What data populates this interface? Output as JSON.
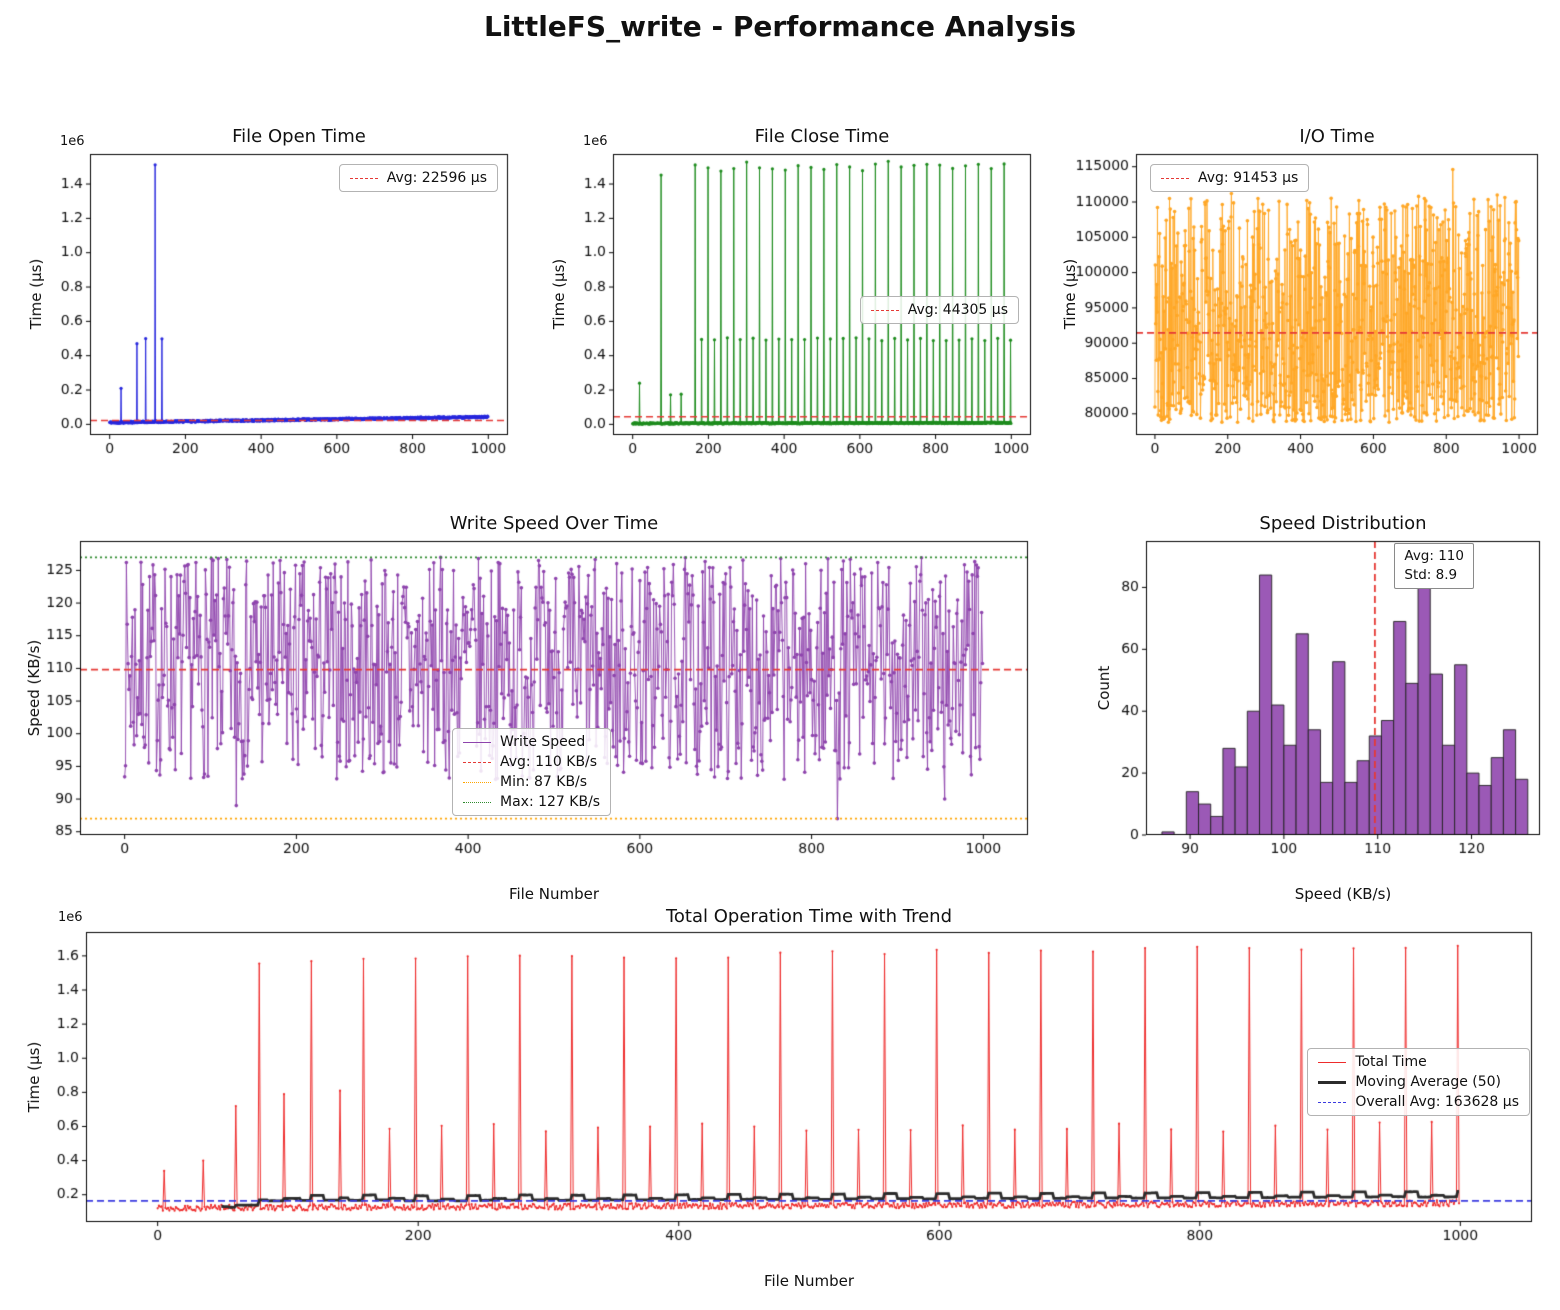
{
  "title": "LittleFS_write - Performance Analysis",
  "chart_data": [
    {
      "id": "file-open-time",
      "type": "line",
      "title": "File Open Time",
      "ylabel": "Time (µs)",
      "y_offset_label": "1e6",
      "xlim": [
        -52,
        1052
      ],
      "ylim": [
        -62000,
        1575000
      ],
      "xticks": [
        0,
        200,
        400,
        600,
        800,
        1000
      ],
      "xtick_labels": [
        "0",
        "200",
        "400",
        "600",
        "800",
        "1000"
      ],
      "yticks": [
        0,
        200000,
        400000,
        600000,
        800000,
        1000000,
        1200000,
        1400000
      ],
      "ytick_labels": [
        "0.0",
        "0.2",
        "0.4",
        "0.6",
        "0.8",
        "1.0",
        "1.2",
        "1.4"
      ],
      "color": "#2727dd",
      "lw": 1,
      "marker_r": 1.6,
      "series": {
        "kind": "baseline_spikes",
        "n": 1000,
        "base_start": 11000,
        "base_end": 43000,
        "noise": 5200,
        "seed": 42,
        "spikes": [
          [
            30,
            210000
          ],
          [
            72,
            470000
          ],
          [
            95,
            500000
          ],
          [
            120,
            1512000
          ],
          [
            138,
            498000
          ]
        ]
      },
      "hlines": [
        {
          "v": 22596,
          "color": "#e53935",
          "dash": "dashed",
          "lw": 1.7
        }
      ],
      "legend": [
        {
          "label": "Avg: 22596 µs",
          "color": "#e53935",
          "dash": "dashed",
          "lw": 1.7
        }
      ]
    },
    {
      "id": "file-close-time",
      "type": "line",
      "title": "File Close Time",
      "ylabel": "Time (µs)",
      "y_offset_label": "1e6",
      "xlim": [
        -52,
        1052
      ],
      "ylim": [
        -62000,
        1575000
      ],
      "xticks": [
        0,
        200,
        400,
        600,
        800,
        1000
      ],
      "xtick_labels": [
        "0",
        "200",
        "400",
        "600",
        "800",
        "1000"
      ],
      "yticks": [
        0,
        200000,
        400000,
        600000,
        800000,
        1000000,
        1200000,
        1400000
      ],
      "ytick_labels": [
        "0.0",
        "0.2",
        "0.4",
        "0.6",
        "0.8",
        "1.0",
        "1.2",
        "1.4"
      ],
      "color": "#1e8c1e",
      "lw": 1,
      "marker_r": 1.6,
      "series": {
        "kind": "baseline_spikes",
        "n": 1000,
        "base_start": 5500,
        "base_end": 9000,
        "noise": 4000,
        "seed": 77,
        "spikes": [
          [
            18,
            240000
          ],
          [
            75,
            1452000
          ],
          [
            100,
            172000
          ],
          [
            128,
            176000
          ]
        ],
        "patterns": [
          {
            "start": 165,
            "end": 998,
            "step": 17,
            "alternate": [
              1503000,
              497000
            ],
            "jitter": 0.02
          }
        ]
      },
      "hlines": [
        {
          "v": 44305,
          "color": "#e53935",
          "dash": "dashed",
          "lw": 1.7
        }
      ],
      "legend": [
        {
          "label": "Avg: 44305 µs",
          "color": "#e53935",
          "dash": "dashed",
          "lw": 1.7
        }
      ]
    },
    {
      "id": "io-time",
      "type": "line",
      "title": "I/O Time",
      "ylabel": "Time (µs)",
      "xlim": [
        -52,
        1052
      ],
      "ylim": [
        77000,
        116800
      ],
      "xticks": [
        0,
        200,
        400,
        600,
        800,
        1000
      ],
      "xtick_labels": [
        "0",
        "200",
        "400",
        "600",
        "800",
        "1000"
      ],
      "yticks": [
        80000,
        85000,
        90000,
        95000,
        100000,
        105000,
        110000,
        115000
      ],
      "ytick_labels": [
        "80000",
        "85000",
        "90000",
        "95000",
        "100000",
        "105000",
        "110000",
        "115000"
      ],
      "color": "#ffa726",
      "lw": 0.9,
      "marker_r": 1.8,
      "series": {
        "kind": "noisy",
        "n": 1000,
        "min": 78800,
        "max": 110800,
        "bias": 1.35,
        "seed": 101,
        "spikes": [
          [
            40,
            110500
          ],
          [
            210,
            111200
          ],
          [
            560,
            110200
          ],
          [
            818,
            114600
          ],
          [
            940,
            111000
          ]
        ]
      },
      "hlines": [
        {
          "v": 91453,
          "color": "#e53935",
          "dash": "dashed",
          "lw": 1.8
        }
      ],
      "legend": [
        {
          "label": "Avg: 91453 µs",
          "color": "#e53935",
          "dash": "dashed",
          "lw": 1.7
        }
      ]
    },
    {
      "id": "write-speed",
      "type": "line",
      "title": "Write Speed Over Time",
      "xlabel": "File Number",
      "ylabel": "Speed (KB/s)",
      "xlim": [
        -52,
        1052
      ],
      "ylim": [
        84.5,
        129.5
      ],
      "xticks": [
        0,
        200,
        400,
        600,
        800,
        1000
      ],
      "xtick_labels": [
        "0",
        "200",
        "400",
        "600",
        "800",
        "1000"
      ],
      "yticks": [
        85,
        90,
        95,
        100,
        105,
        110,
        115,
        120,
        125
      ],
      "ytick_labels": [
        "85",
        "90",
        "95",
        "100",
        "105",
        "110",
        "115",
        "120",
        "125"
      ],
      "color": "#8e44ad",
      "lw": 0.9,
      "marker_r": 1.8,
      "series": {
        "kind": "noisy",
        "n": 1000,
        "min": 93,
        "max": 127,
        "bias": 1.0,
        "seed": 7,
        "spikes": [
          [
            130,
            89
          ],
          [
            830,
            87
          ],
          [
            955,
            90
          ]
        ]
      },
      "hlines": [
        {
          "v": 109.8,
          "color": "#e53935",
          "dash": "dashed",
          "lw": 1.8
        },
        {
          "v": 87,
          "color": "#ffa500",
          "dash": "dotted",
          "lw": 1.8
        },
        {
          "v": 127,
          "color": "#2e8b2e",
          "dash": "dotted",
          "lw": 1.8
        }
      ],
      "legend": [
        {
          "label": "Write Speed",
          "color": "#8e44ad",
          "dash": "solid",
          "lw": 1.7
        },
        {
          "label": "Avg: 110 KB/s",
          "color": "#e53935",
          "dash": "dashed",
          "lw": 1.7
        },
        {
          "label": "Min: 87 KB/s",
          "color": "#ffa500",
          "dash": "dotted",
          "lw": 1.7
        },
        {
          "label": "Max: 127 KB/s",
          "color": "#2e8b2e",
          "dash": "dotted",
          "lw": 1.7
        }
      ]
    },
    {
      "id": "speed-distribution",
      "type": "histogram",
      "title": "Speed Distribution",
      "xlabel": "Speed (KB/s)",
      "ylabel": "Count",
      "xlim": [
        85.3,
        127.3
      ],
      "ylim": [
        0,
        95
      ],
      "xticks": [
        90,
        100,
        110,
        120
      ],
      "xtick_labels": [
        "90",
        "100",
        "110",
        "120"
      ],
      "yticks": [
        0,
        20,
        40,
        60,
        80
      ],
      "ytick_labels": [
        "0",
        "20",
        "40",
        "60",
        "80"
      ],
      "hist": {
        "start": 87,
        "width": 1.3,
        "fill": "#9b59b6",
        "edge": "#202020",
        "counts": [
          1,
          0,
          14,
          10,
          6,
          28,
          22,
          40,
          84,
          42,
          29,
          65,
          34,
          17,
          56,
          17,
          24,
          32,
          37,
          69,
          49,
          91,
          52,
          29,
          55,
          20,
          16,
          25,
          34,
          18
        ]
      },
      "vlines": [
        {
          "v": 109.7,
          "color": "#e53935",
          "dash": "dashed",
          "lw": 1.8
        }
      ],
      "annotation": [
        "Avg: 110",
        "Std: 8.9"
      ]
    },
    {
      "id": "total-operation-time",
      "type": "line",
      "title": "Total Operation Time with Trend",
      "xlabel": "File Number",
      "ylabel": "Time (µs)",
      "y_offset_label": "1e6",
      "xlim": [
        -55,
        1055
      ],
      "ylim": [
        40000,
        1740000
      ],
      "xticks": [
        0,
        200,
        400,
        600,
        800,
        1000
      ],
      "xtick_labels": [
        "0",
        "200",
        "400",
        "600",
        "800",
        "1000"
      ],
      "yticks": [
        200000,
        400000,
        600000,
        800000,
        1000000,
        1200000,
        1400000,
        1600000
      ],
      "ytick_labels": [
        "0.2",
        "0.4",
        "0.6",
        "0.8",
        "1.0",
        "1.2",
        "1.4",
        "1.6"
      ],
      "color": "#ee2c2c",
      "lw": 1,
      "marker_r": 1.1,
      "series": {
        "kind": "baseline_spikes",
        "n": 1000,
        "base_start": 122000,
        "base_end": 150000,
        "noise": 18000,
        "seed": 55,
        "spikes": [
          [
            5,
            340000
          ],
          [
            35,
            400000
          ],
          [
            60,
            720000
          ],
          [
            97,
            790000
          ],
          [
            140,
            810000
          ]
        ],
        "patterns": [
          {
            "start": 78,
            "end": 998,
            "step": 40,
            "v0": 1568000,
            "v1": 1660000,
            "jitter": 0.01
          },
          {
            "start": 178,
            "end": 998,
            "step": 40,
            "v": 600000,
            "jitter": 0.05
          }
        ]
      },
      "moving_avg": {
        "window": 50,
        "color": "#2b2b2b",
        "lw": 2.8
      },
      "hlines": [
        {
          "v": 163628,
          "color": "#3b3be0",
          "dash": "dashed",
          "lw": 1.8
        }
      ],
      "legend": [
        {
          "label": "Total Time",
          "color": "#ee2c2c",
          "dash": "solid",
          "lw": 1.7
        },
        {
          "label": "Moving Average (50)",
          "color": "#2b2b2b",
          "dash": "solid",
          "lw": 3
        },
        {
          "label": "Overall Avg: 163628 µs",
          "color": "#3b3be0",
          "dash": "dashed",
          "lw": 1.7
        }
      ]
    }
  ]
}
